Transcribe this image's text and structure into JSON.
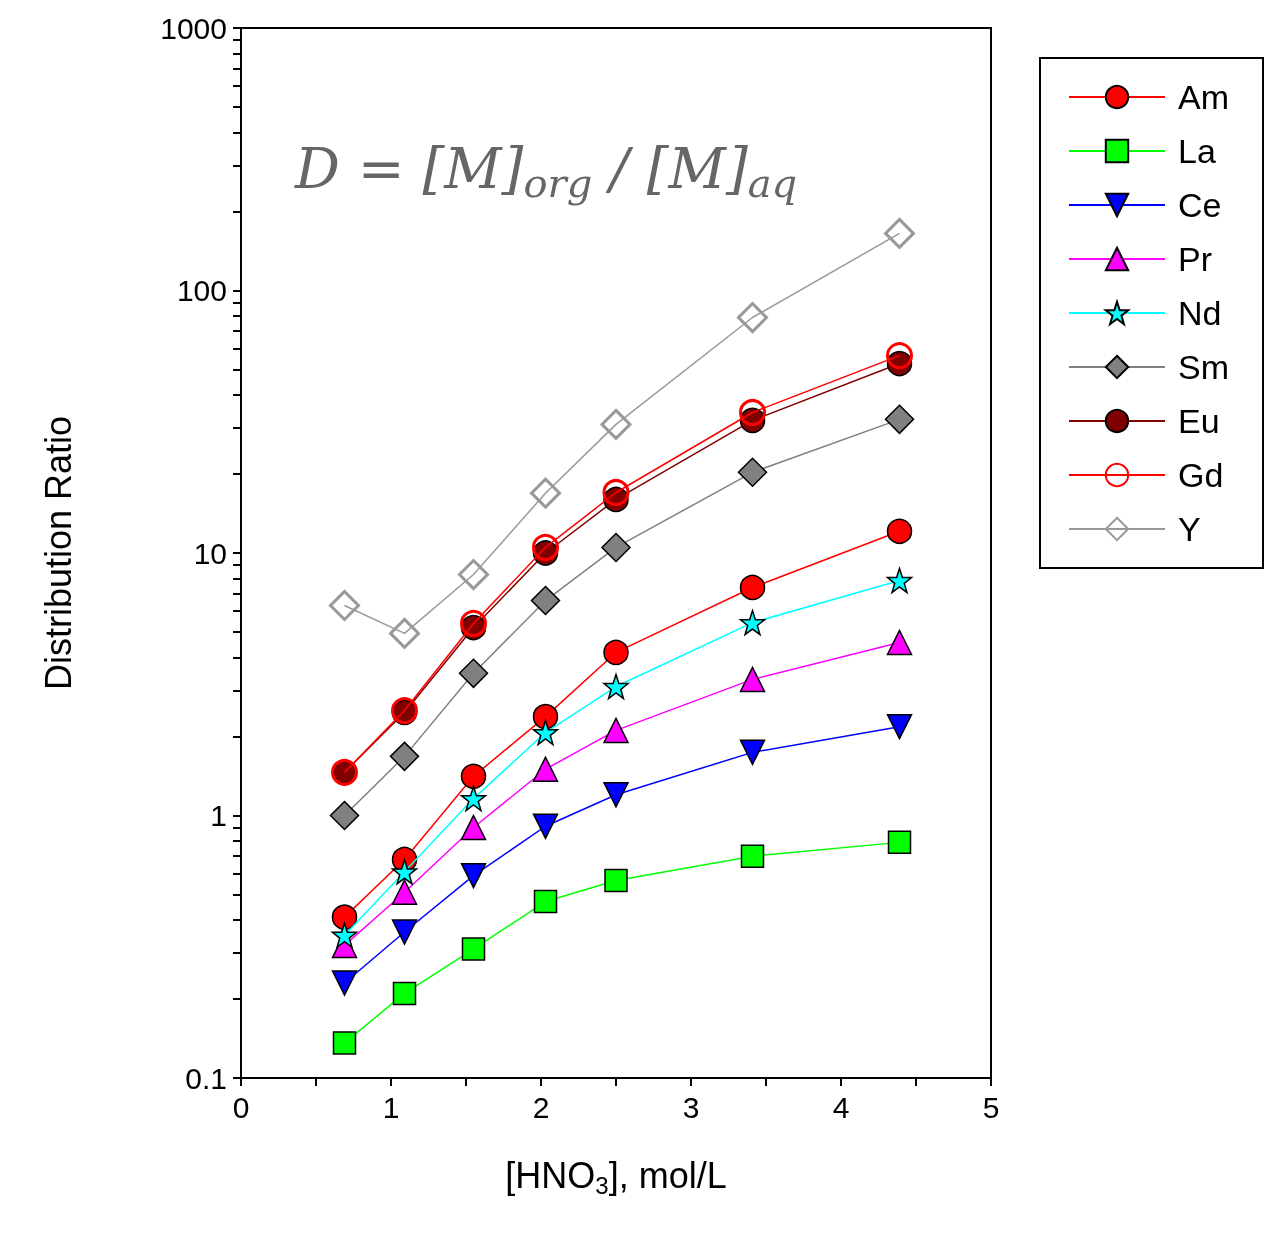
{
  "chart_data": {
    "type": "line",
    "xlabel": "[HNO$_{3}$], mol/L",
    "ylabel": "Distribution Ratio",
    "annotations": [
      "D = [M]$_{org}$ / [M]$_{aq}$"
    ],
    "x": [
      0.69,
      1.09,
      1.55,
      2.03,
      2.5,
      3.41,
      4.39
    ],
    "series": [
      {
        "name": "Am",
        "color": "#ff0000",
        "marker": "circle",
        "values": [
          0.41,
          0.68,
          1.41,
          2.38,
          4.18,
          7.39,
          12.1
        ]
      },
      {
        "name": "La",
        "color": "#00ff00",
        "marker": "square",
        "values": [
          0.136,
          0.21,
          0.31,
          0.47,
          0.565,
          0.7,
          0.79
        ]
      },
      {
        "name": "Ce",
        "color": "#0000ff",
        "marker": "triangle-down",
        "values": [
          0.23,
          0.36,
          0.59,
          0.91,
          1.2,
          1.74,
          2.18
        ]
      },
      {
        "name": "Pr",
        "color": "#ff00ff",
        "marker": "triangle",
        "values": [
          0.32,
          0.51,
          0.9,
          1.5,
          2.11,
          3.3,
          4.56
        ]
      },
      {
        "name": "Nd",
        "color": "#00ffff",
        "marker": "star",
        "values": [
          0.35,
          0.61,
          1.16,
          2.07,
          3.1,
          5.43,
          7.86
        ]
      },
      {
        "name": "Sm",
        "color": "#808080",
        "marker": "diamond",
        "values": [
          1.0,
          1.68,
          3.48,
          6.59,
          10.5,
          20.3,
          32.3
        ]
      },
      {
        "name": "Eu",
        "color": "#800000",
        "marker": "circle",
        "values": [
          1.46,
          2.47,
          5.2,
          10.0,
          16.0,
          32.0,
          52.7
        ]
      },
      {
        "name": "Gd",
        "color": "#ff0000",
        "marker": "circle-open",
        "values": [
          1.46,
          2.51,
          5.39,
          10.5,
          17.0,
          34.3,
          56.5
        ]
      },
      {
        "name": "Y",
        "color": "#999999",
        "marker": "diamond-open",
        "values": [
          6.31,
          4.94,
          8.28,
          16.9,
          30.9,
          78.9,
          165
        ]
      }
    ],
    "xlim": [
      0,
      5
    ],
    "xticks": [
      0,
      {
        "value": 0.5,
        "label": null
      },
      1,
      {
        "value": 1.5,
        "label": null
      },
      2,
      {
        "value": 2.5,
        "label": null
      },
      3,
      {
        "value": 3.5,
        "label": null
      },
      4,
      {
        "value": 4.5,
        "label": null
      },
      5
    ],
    "ylim": [
      0.1,
      1000
    ],
    "log": "y",
    "yticks": [
      0.1,
      {
        "value": 0.2,
        "label": null
      },
      {
        "value": 0.3,
        "label": null
      },
      {
        "value": 0.4,
        "label": null
      },
      {
        "value": 0.5,
        "label": null
      },
      {
        "value": 0.6,
        "label": null
      },
      {
        "value": 0.7,
        "label": null
      },
      {
        "value": 0.8,
        "label": null
      },
      {
        "value": 0.9,
        "label": null
      },
      1,
      {
        "value": 2,
        "label": null
      },
      {
        "value": 3,
        "label": null
      },
      {
        "value": 4,
        "label": null
      },
      {
        "value": 5,
        "label": null
      },
      {
        "value": 6,
        "label": null
      },
      {
        "value": 7,
        "label": null
      },
      {
        "value": 8,
        "label": null
      },
      {
        "value": 9,
        "label": null
      },
      10,
      {
        "value": 20,
        "label": null
      },
      {
        "value": 30,
        "label": null
      },
      {
        "value": 40,
        "label": null
      },
      {
        "value": 50,
        "label": null
      },
      {
        "value": 60,
        "label": null
      },
      {
        "value": 70,
        "label": null
      },
      {
        "value": 80,
        "label": null
      },
      {
        "value": 90,
        "label": null
      },
      100,
      {
        "value": 200,
        "label": null
      },
      {
        "value": 300,
        "label": null
      },
      {
        "value": 400,
        "label": null
      },
      {
        "value": 500,
        "label": null
      },
      {
        "value": 600,
        "label": null
      },
      {
        "value": 700,
        "label": null
      },
      {
        "value": 800,
        "label": null
      },
      {
        "value": 900,
        "label": null
      },
      1000
    ],
    "grid": false,
    "legend": "top right",
    "line_style": "solid"
  }
}
